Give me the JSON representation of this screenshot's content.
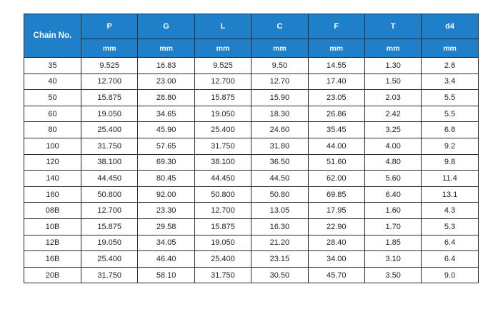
{
  "table": {
    "row_header": "Chain No.",
    "columns": [
      "P",
      "G",
      "L",
      "C",
      "F",
      "T",
      "d4"
    ],
    "units": [
      "mm",
      "mm",
      "mm",
      "mm",
      "mm",
      "mm",
      "mm"
    ],
    "rows": [
      [
        "35",
        "9.525",
        "16.83",
        "9.525",
        "9.50",
        "14.55",
        "1.30",
        "2.8"
      ],
      [
        "40",
        "12.700",
        "23.00",
        "12.700",
        "12.70",
        "17.40",
        "1.50",
        "3.4"
      ],
      [
        "50",
        "15.875",
        "28.80",
        "15.875",
        "15.90",
        "23.05",
        "2.03",
        "5.5"
      ],
      [
        "60",
        "19.050",
        "34.65",
        "19.050",
        "18.30",
        "26.86",
        "2.42",
        "5.5"
      ],
      [
        "80",
        "25.400",
        "45.90",
        "25.400",
        "24.60",
        "35.45",
        "3.25",
        "6.8"
      ],
      [
        "100",
        "31.750",
        "57.65",
        "31.750",
        "31.80",
        "44.00",
        "4.00",
        "9.2"
      ],
      [
        "120",
        "38.100",
        "69.30",
        "38.100",
        "36.50",
        "51.60",
        "4.80",
        "9.8"
      ],
      [
        "140",
        "44.450",
        "80.45",
        "44.450",
        "44.50",
        "62.00",
        "5.60",
        "11.4"
      ],
      [
        "160",
        "50.800",
        "92.00",
        "50.800",
        "50.80",
        "69.85",
        "6.40",
        "13.1"
      ],
      [
        "08B",
        "12.700",
        "23.30",
        "12.700",
        "13.05",
        "17.95",
        "1.60",
        "4.3"
      ],
      [
        "10B",
        "15.875",
        "29.58",
        "15.875",
        "16.30",
        "22.90",
        "1.70",
        "5.3"
      ],
      [
        "12B",
        "19.050",
        "34.05",
        "19.050",
        "21.20",
        "28.40",
        "1.85",
        "6.4"
      ],
      [
        "16B",
        "25.400",
        "46.40",
        "25.400",
        "23.15",
        "34.00",
        "3.10",
        "6.4"
      ],
      [
        "20B",
        "31.750",
        "58.10",
        "31.750",
        "30.50",
        "45.70",
        "3.50",
        "9.0"
      ]
    ]
  },
  "colors": {
    "header_bg": "#1f7fc9",
    "header_text": "#ffffff",
    "border": "#2b2b2b"
  }
}
